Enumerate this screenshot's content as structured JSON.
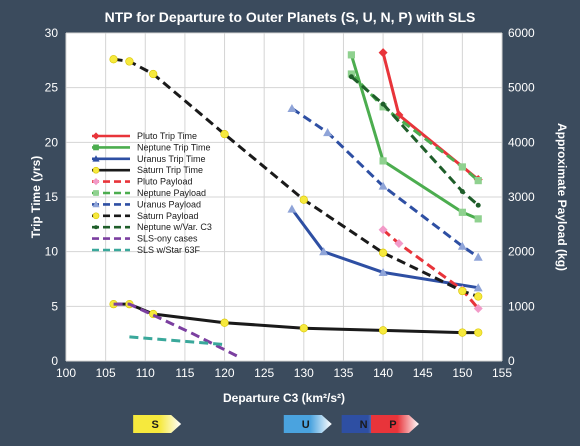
{
  "chart_data": {
    "type": "line",
    "title": "NTP for Departure to Outer Planets (S, U, N, P) with SLS",
    "xlabel": "Departure C3 (km²/s²)",
    "ylabel_left": "Trip Time (yrs)",
    "ylabel_right": "Approximate Payload (kg)",
    "xlim": [
      100,
      155
    ],
    "ylim_left": [
      0,
      30
    ],
    "ylim_right": [
      0,
      6000
    ],
    "x_ticks": [
      "100",
      "105",
      "110",
      "115",
      "120",
      "125",
      "130",
      "135",
      "140",
      "145",
      "150",
      "155"
    ],
    "y_left_ticks": [
      "0",
      "5",
      "10",
      "15",
      "20",
      "25",
      "30"
    ],
    "y_right_ticks": [
      "0",
      "1000",
      "2000",
      "3000",
      "4000",
      "5000",
      "6000"
    ],
    "grid": true,
    "legend_position": "left",
    "series": [
      {
        "name": "Pluto Trip Time",
        "axis": "left",
        "color": "#e8343a",
        "marker": "diamond",
        "dashed": false,
        "points": [
          [
            140,
            28.2
          ],
          [
            142,
            22.5
          ],
          [
            152,
            16.6
          ]
        ]
      },
      {
        "name": "Neptune Trip Time",
        "axis": "left",
        "color": "#4cad4f",
        "marker": "square",
        "dashed": false,
        "points": [
          [
            136,
            28.0
          ],
          [
            140,
            18.3
          ],
          [
            150,
            13.6
          ],
          [
            152,
            13.0
          ]
        ]
      },
      {
        "name": "Uranus Trip Time",
        "axis": "left",
        "color": "#2e4fa3",
        "marker": "triangle",
        "dashed": false,
        "points": [
          [
            128.5,
            13.9
          ],
          [
            132.5,
            10.0
          ],
          [
            140,
            8.1
          ],
          [
            152,
            6.7
          ]
        ]
      },
      {
        "name": "Saturn Trip Time",
        "axis": "left",
        "color": "#1a1a1a",
        "marker": "circle",
        "dashed": false,
        "points": [
          [
            106,
            5.2
          ],
          [
            108,
            5.2
          ],
          [
            111,
            4.3
          ],
          [
            120,
            3.5
          ],
          [
            130,
            3.0
          ],
          [
            140,
            2.8
          ],
          [
            150,
            2.6
          ],
          [
            152,
            2.6
          ]
        ]
      },
      {
        "name": "Pluto Payload",
        "axis": "right",
        "color": "#e8343a",
        "marker": "diamond",
        "dashed": true,
        "points": [
          [
            140,
            2400
          ],
          [
            142,
            2150
          ],
          [
            150,
            1300
          ],
          [
            152,
            960
          ]
        ]
      },
      {
        "name": "Neptune Payload",
        "axis": "right",
        "color": "#4cad4f",
        "marker": "square",
        "dashed": true,
        "points": [
          [
            136,
            5250
          ],
          [
            140,
            4650
          ],
          [
            150,
            3550
          ],
          [
            152,
            3300
          ]
        ]
      },
      {
        "name": "Uranus Payload",
        "axis": "right",
        "color": "#2e4fa3",
        "marker": "triangle",
        "dashed": true,
        "points": [
          [
            128.5,
            4620
          ],
          [
            133,
            4180
          ],
          [
            140,
            3200
          ],
          [
            150,
            2100
          ],
          [
            152,
            1900
          ]
        ]
      },
      {
        "name": "Saturn Payload",
        "axis": "right",
        "color": "#1a1a1a",
        "marker": "circle",
        "dashed": true,
        "points": [
          [
            106,
            5520
          ],
          [
            108,
            5480
          ],
          [
            111,
            5250
          ],
          [
            120,
            4150
          ],
          [
            130,
            2950
          ],
          [
            140,
            1980
          ],
          [
            150,
            1280
          ],
          [
            152,
            1180
          ]
        ]
      },
      {
        "name": "Neptune w/Var. C3",
        "axis": "right",
        "color": "#1f5e2a",
        "marker": "dot",
        "dashed": true,
        "points": [
          [
            136,
            5200
          ],
          [
            140,
            4700
          ],
          [
            150,
            3100
          ],
          [
            152,
            2850
          ]
        ]
      },
      {
        "name": "SLS-ony cases",
        "axis": "left",
        "color": "#7b3fa0",
        "marker": "none",
        "dashed": true,
        "points": [
          [
            106,
            5.2
          ],
          [
            108,
            5.2
          ],
          [
            111,
            4.2
          ],
          [
            116,
            2.5
          ],
          [
            122,
            0.3
          ]
        ]
      },
      {
        "name": "SLS w/Star 63F",
        "axis": "left",
        "color": "#3aa89b",
        "marker": "none",
        "dashed": true,
        "points": [
          [
            108,
            2.2
          ],
          [
            120,
            1.5
          ]
        ]
      }
    ],
    "badges": [
      {
        "label": "S",
        "x": 111.5,
        "color": "#f6e93d"
      },
      {
        "label": "U",
        "x": 130.5,
        "color": "#4aa3df"
      },
      {
        "label": "N",
        "x": 137.8,
        "color": "#2e4fa3"
      },
      {
        "label": "P",
        "x": 141.5,
        "color": "#e8343a"
      }
    ]
  }
}
